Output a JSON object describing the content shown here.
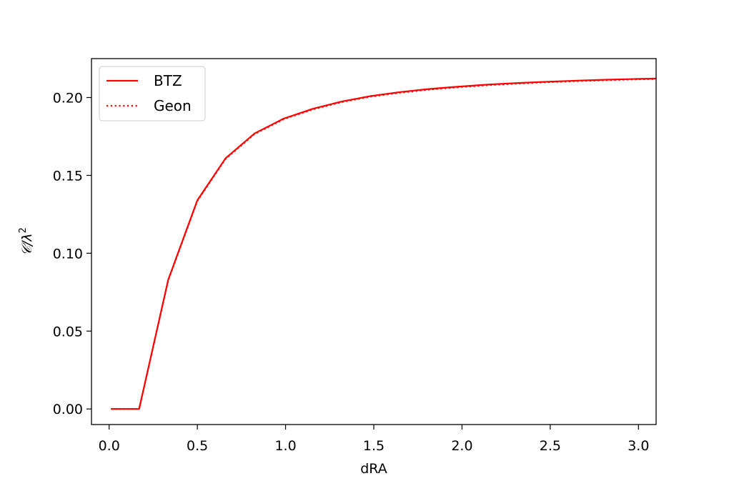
{
  "chart_data": {
    "type": "line",
    "title": "",
    "xlabel": "dRA",
    "ylabel": "𝒞/λ",
    "ylabel_superscript": "2",
    "xlim": [
      -0.1,
      3.1
    ],
    "ylim": [
      -0.01,
      0.225
    ],
    "x_ticks": [
      {
        "value": 0.0,
        "label": "0.0"
      },
      {
        "value": 0.5,
        "label": "0.5"
      },
      {
        "value": 1.0,
        "label": "1.0"
      },
      {
        "value": 1.5,
        "label": "1.5"
      },
      {
        "value": 2.0,
        "label": "2.0"
      },
      {
        "value": 2.5,
        "label": "2.5"
      },
      {
        "value": 3.0,
        "label": "3.0"
      }
    ],
    "y_ticks": [
      {
        "value": 0.0,
        "label": "0.00"
      },
      {
        "value": 0.05,
        "label": "0.05"
      },
      {
        "value": 0.1,
        "label": "0.10"
      },
      {
        "value": 0.15,
        "label": "0.15"
      },
      {
        "value": 0.2,
        "label": "0.20"
      }
    ],
    "grid": false,
    "legend_position": "top-left",
    "series": [
      {
        "name": "BTZ",
        "color": "#ff0000",
        "style": "solid",
        "x": [
          0.01,
          0.17,
          0.335,
          0.5,
          0.66,
          0.825,
          0.99,
          1.155,
          1.32,
          1.485,
          1.65,
          1.815,
          1.98,
          2.145,
          2.31,
          2.475,
          2.64,
          2.805,
          2.97,
          3.1
        ],
        "y": [
          0.0,
          0.0,
          0.083,
          0.134,
          0.161,
          0.177,
          0.1865,
          0.1928,
          0.1975,
          0.201,
          0.2035,
          0.2055,
          0.207,
          0.2083,
          0.2093,
          0.2101,
          0.2108,
          0.2114,
          0.2119,
          0.2122
        ]
      },
      {
        "name": "Geon",
        "color": "#ff0000",
        "style": "dotted",
        "x": [
          0.01,
          0.17,
          0.335,
          0.5,
          0.66,
          0.825,
          0.99,
          1.155,
          1.32,
          1.485,
          1.65,
          1.815,
          1.98,
          2.145,
          2.31,
          2.475,
          2.64,
          2.805,
          2.97,
          3.1
        ],
        "y": [
          0.0,
          0.0,
          0.0826,
          0.1336,
          0.1606,
          0.1766,
          0.1861,
          0.1924,
          0.1971,
          0.2006,
          0.2031,
          0.2051,
          0.2066,
          0.2079,
          0.2089,
          0.2098,
          0.2105,
          0.2111,
          0.2116,
          0.2119
        ]
      }
    ]
  }
}
